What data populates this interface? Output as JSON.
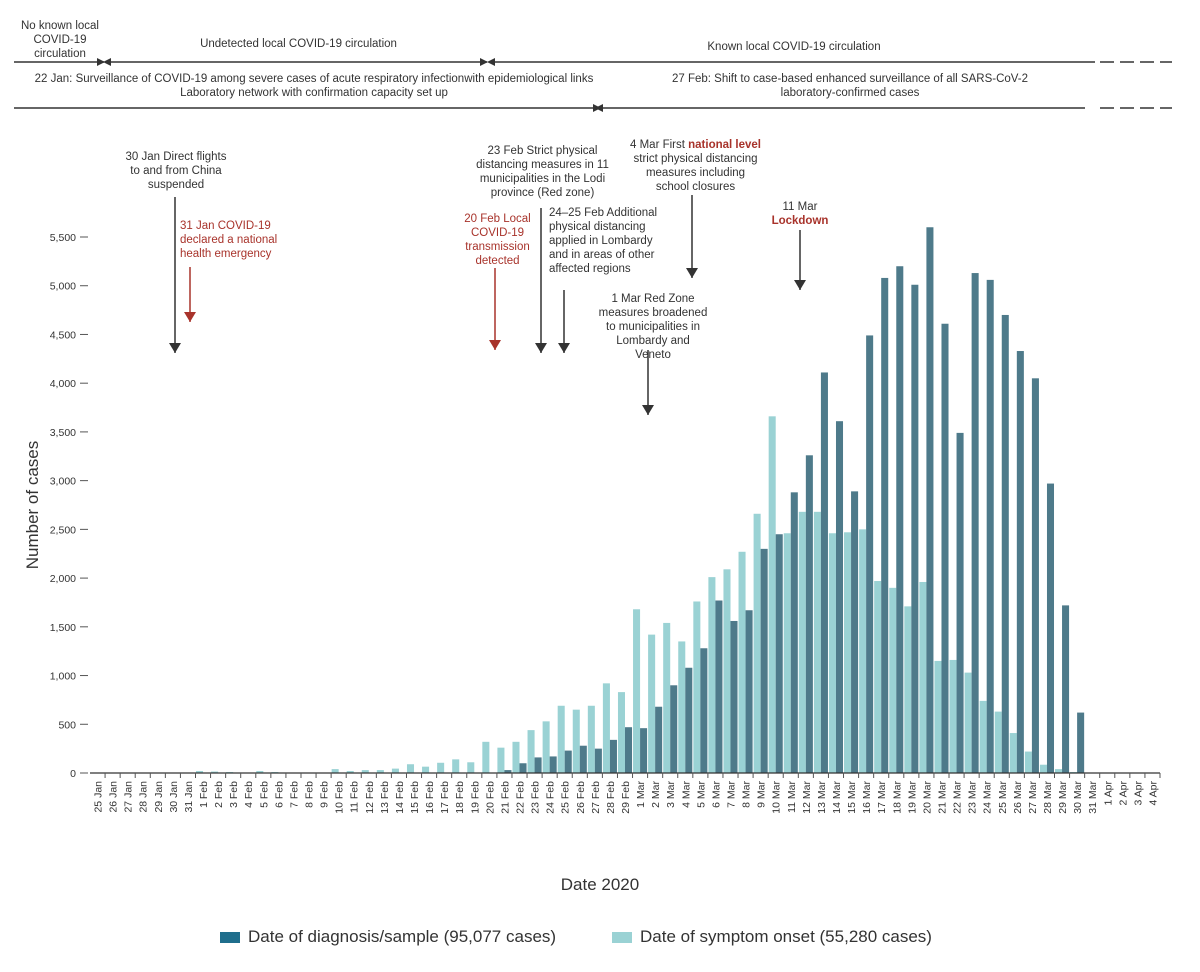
{
  "colors": {
    "diagnosis": "#4e7a8a",
    "onset": "#9ad2d4",
    "accent_red": "#a8332b"
  },
  "timeline": {
    "no_known": "No known local COVID-19 circulation",
    "undetected": "Undetected local COVID-19 circulation",
    "known": "Known local COVID-19 circulation",
    "surveillance_22jan": "22 Jan: Surveillance of COVID-19 among severe cases of acute respiratory infectionwith epidemiological links",
    "lab_network": "Laboratory network with confirmation capacity set up",
    "shift_27feb_1": "27 Feb: Shift to case-based enhanced surveillance of all SARS-CoV-2",
    "shift_27feb_2": "laboratory-confirmed cases"
  },
  "annotations": {
    "a30jan": "30 Jan Direct flights to and from China suspended",
    "a31jan": "31 Jan COVID-19 declared a national health emergency",
    "a20feb": "20 Feb Local COVID-19 transmission detected",
    "a23feb": "23 Feb Strict physical distancing measures in 11 municipalities in the Lodi province (Red zone)",
    "a24feb": "24–25 Feb Additional physical distancing applied in Lombardy and in areas of other affected regions",
    "a1mar": "1 Mar Red Zone measures broadened to municipalities in Lombardy and Veneto",
    "a4mar_pre": "4 Mar First ",
    "a4mar_bold": "national level",
    "a4mar_post": " strict physical distancing measures including school closures",
    "a11mar_date": "11 Mar",
    "a11mar_bold": "Lockdown"
  },
  "chart_data": {
    "type": "bar",
    "xlabel": "Date 2020",
    "ylabel": "Number of cases",
    "ylim": [
      0,
      5500
    ],
    "yticks": [
      0,
      500,
      1000,
      1500,
      2000,
      2500,
      3000,
      3500,
      4000,
      4500,
      5000,
      5500
    ],
    "ytick_labels": [
      "0",
      "500",
      "1,000",
      "1,500",
      "2,000",
      "2,500",
      "3,000",
      "3,500",
      "4,000",
      "4,500",
      "5,000",
      "5,500"
    ],
    "categories": [
      "25 Jan",
      "26 Jan",
      "27 Jan",
      "28 Jan",
      "29 Jan",
      "30 Jan",
      "31 Jan",
      "1 Feb",
      "2 Feb",
      "3 Feb",
      "4 Feb",
      "5 Feb",
      "6 Feb",
      "7 Feb",
      "8 Feb",
      "9 Feb",
      "10 Feb",
      "11 Feb",
      "12 Feb",
      "13 Feb",
      "14 Feb",
      "15 Feb",
      "16 Feb",
      "17 Feb",
      "18 Feb",
      "19 Feb",
      "20 Feb",
      "21 Feb",
      "22 Feb",
      "23 Feb",
      "24 Feb",
      "25 Feb",
      "26 Feb",
      "27 Feb",
      "28 Feb",
      "29 Feb",
      "1 Mar",
      "2 Mar",
      "3 Mar",
      "4 Mar",
      "5 Mar",
      "6 Mar",
      "7 Mar",
      "8 Mar",
      "9 Mar",
      "10 Mar",
      "11 Mar",
      "12 Mar",
      "13 Mar",
      "14 Mar",
      "15 Mar",
      "16 Mar",
      "17 Mar",
      "18 Mar",
      "19 Mar",
      "20 Mar",
      "21 Mar",
      "22 Mar",
      "23 Mar",
      "24 Mar",
      "25 Mar",
      "26 Mar",
      "27 Mar",
      "28 Mar",
      "29 Mar",
      "30 Mar",
      "31 Mar",
      "1 Apr",
      "2 Apr",
      "3 Apr",
      "4 Apr"
    ],
    "series": [
      {
        "name": "Date of symptom onset (55,280 cases)",
        "key": "onset",
        "values": [
          0,
          0,
          0,
          0,
          0,
          0,
          0,
          20,
          15,
          10,
          5,
          20,
          10,
          5,
          5,
          5,
          40,
          20,
          30,
          30,
          45,
          90,
          65,
          105,
          140,
          110,
          320,
          260,
          320,
          440,
          530,
          690,
          650,
          690,
          920,
          830,
          1680,
          1420,
          1540,
          1350,
          1760,
          2010,
          2090,
          2270,
          2660,
          3660,
          2460,
          2680,
          2680,
          2460,
          2470,
          2500,
          1970,
          1900,
          1710,
          1960,
          1150,
          1160,
          1030,
          740,
          630,
          410,
          220,
          85,
          40,
          10,
          0,
          0,
          0,
          0,
          0
        ]
      },
      {
        "name": "Date of diagnosis/sample (95,077 cases)",
        "key": "diagnosis",
        "values": [
          0,
          0,
          0,
          0,
          0,
          0,
          0,
          0,
          0,
          0,
          0,
          0,
          0,
          0,
          0,
          0,
          0,
          0,
          0,
          0,
          0,
          0,
          0,
          0,
          0,
          0,
          0,
          30,
          100,
          160,
          170,
          230,
          280,
          250,
          340,
          470,
          460,
          680,
          900,
          1080,
          1280,
          1770,
          1560,
          1670,
          2300,
          2450,
          2880,
          3260,
          4110,
          3610,
          2890,
          4490,
          5080,
          5200,
          5010,
          5600,
          4610,
          3490,
          5130,
          5060,
          4700,
          4330,
          4050,
          2970,
          1720,
          620,
          0,
          0,
          0,
          0,
          0
        ]
      }
    ],
    "legend": "bottom"
  }
}
